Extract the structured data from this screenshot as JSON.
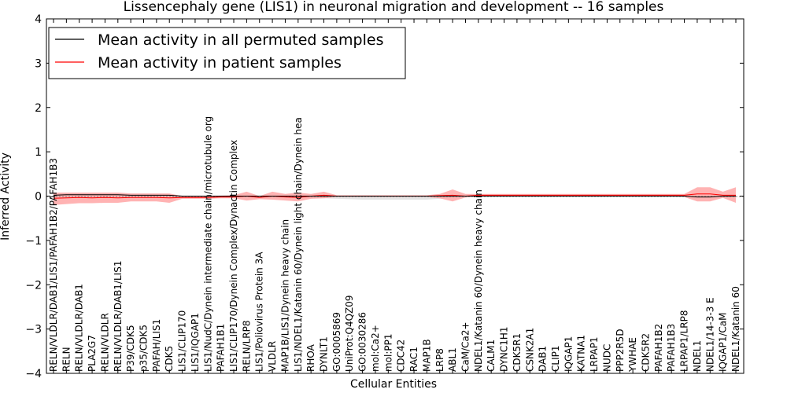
{
  "chart_data": {
    "type": "line",
    "title": "Lissencephaly gene (LIS1) in neuronal migration and development -- 16 samples",
    "xlabel": "Cellular Entities",
    "ylabel": "Inferred Activity",
    "ylim": [
      -4,
      4
    ],
    "yticks": [
      -4,
      -3,
      -2,
      -1,
      0,
      1,
      2,
      3,
      4
    ],
    "ytick_labels": [
      "−4",
      "−3",
      "−2",
      "−1",
      "0",
      "1",
      "2",
      "3",
      "4"
    ],
    "legend_position": "top-left",
    "colors": {
      "permuted_line": "#000000",
      "patient_line": "#ff0000",
      "patient_band": "#ff9999",
      "permuted_band": "#d9d9d9",
      "baseline": "#808080"
    },
    "categories": [
      "RELN/VLDLR/DAB1/LIS1/PAFAH1B2/PAFAH1B3",
      "RELN",
      "RELN/VLDLR/DAB1",
      "PLA2G7",
      "RELN/VLDLR",
      "RELN/VLDLR/DAB1/LIS1",
      "P39/CDK5",
      "p35/CDK5",
      "PAFAH/LIS1",
      "CDK5",
      "LIS1/CLIP170",
      "LIS1/IQGAP1",
      "LIS1/NudC/Dynein intermediate chain/microtubule org",
      "PAFAH1B1",
      "LIS1/CLIP170/Dynein Complex/Dynactin Complex",
      "RELN/LRP8",
      "LIS1/Poliovirus Protein 3A",
      "VLDLR",
      "MAP1B/LIS1/Dynein heavy chain",
      "LIS1/NDEL1/Katanin 60/Dynein light chain/Dynein hea",
      "RHOA",
      "DYNLT1",
      "GO:0005869",
      "UniProt:Q4QZ09",
      "GO:0030286",
      "mol:Ca2+",
      "mol:PP1",
      "CDC42",
      "RAC1",
      "MAP1B",
      "LRP8",
      "ABL1",
      "CaM/Ca2+",
      "NDEL1/Katanin 60/Dynein heavy chain",
      "CALM1",
      "DYNC1H1",
      "CDK5R1",
      "CSNK2A1",
      "DAB1",
      "CLIP1",
      "IQGAP1",
      "KATNA1",
      "LRPAP1",
      "NUDC",
      "PPP2R5D",
      "YWHAE",
      "CDK5R2",
      "PAFAH1B2",
      "PAFAH1B3",
      "LRPAP1/LRP8",
      "NDEL1",
      "NDEL1/14-3-3 E",
      "IQGAP1/CaM",
      "NDEL1/Katanin 60"
    ],
    "series": [
      {
        "name": "Mean activity in all permuted samples",
        "values": [
          0.02,
          0.03,
          0.03,
          0.03,
          0.03,
          0.03,
          0.02,
          0.02,
          0.02,
          0.02,
          0.0,
          0.0,
          0.0,
          0.0,
          0.0,
          0.0,
          0.0,
          0.0,
          0.0,
          0.0,
          0.0,
          0.0,
          0.0,
          0.0,
          0.0,
          0.0,
          0.0,
          0.0,
          0.0,
          0.0,
          0.0,
          0.0,
          0.0,
          0.0,
          0.0,
          0.0,
          0.0,
          0.0,
          0.0,
          0.0,
          0.0,
          0.0,
          0.0,
          0.0,
          0.0,
          0.0,
          0.0,
          0.0,
          0.0,
          0.0,
          -0.02,
          -0.02,
          0.0,
          0.0
        ]
      },
      {
        "name": "Mean activity in patient samples",
        "values": [
          -0.05,
          -0.04,
          -0.03,
          -0.04,
          -0.03,
          -0.04,
          -0.03,
          -0.03,
          -0.03,
          -0.04,
          -0.03,
          -0.03,
          -0.03,
          -0.02,
          -0.02,
          0.0,
          -0.03,
          0.0,
          -0.02,
          -0.03,
          0.0,
          0.02,
          0.0,
          0.0,
          0.0,
          0.0,
          0.0,
          0.0,
          0.0,
          0.0,
          0.01,
          0.02,
          0.0,
          0.02,
          0.02,
          0.02,
          0.02,
          0.02,
          0.02,
          0.02,
          0.02,
          0.02,
          0.02,
          0.02,
          0.02,
          0.02,
          0.02,
          0.02,
          0.02,
          0.02,
          0.05,
          0.05,
          0.02,
          0.02
        ]
      }
    ],
    "patient_band": {
      "upper": [
        0.08,
        0.08,
        0.08,
        0.08,
        0.08,
        0.08,
        0.06,
        0.06,
        0.06,
        0.06,
        0.0,
        0.0,
        0.0,
        0.01,
        0.02,
        0.1,
        0.0,
        0.1,
        0.05,
        0.08,
        0.05,
        0.1,
        0.02,
        0.02,
        0.02,
        0.02,
        0.02,
        0.02,
        0.02,
        0.02,
        0.05,
        0.15,
        0.05,
        0.05,
        0.05,
        0.05,
        0.05,
        0.05,
        0.05,
        0.05,
        0.05,
        0.05,
        0.05,
        0.05,
        0.05,
        0.05,
        0.05,
        0.05,
        0.05,
        0.05,
        0.2,
        0.2,
        0.1,
        0.2
      ],
      "lower": [
        -0.2,
        -0.18,
        -0.16,
        -0.16,
        -0.15,
        -0.15,
        -0.12,
        -0.12,
        -0.12,
        -0.15,
        -0.06,
        -0.06,
        -0.06,
        -0.05,
        -0.05,
        -0.1,
        -0.07,
        -0.08,
        -0.1,
        -0.12,
        -0.06,
        -0.05,
        -0.02,
        -0.02,
        -0.02,
        -0.02,
        -0.02,
        -0.02,
        -0.02,
        -0.02,
        -0.05,
        -0.12,
        -0.03,
        -0.01,
        -0.01,
        -0.01,
        -0.01,
        -0.01,
        -0.01,
        -0.01,
        -0.01,
        -0.01,
        -0.01,
        -0.01,
        -0.01,
        -0.01,
        -0.01,
        -0.01,
        -0.01,
        -0.02,
        -0.12,
        -0.12,
        -0.04,
        -0.15
      ]
    },
    "permuted_band": {
      "upper": [
        0.05,
        0.06,
        0.06,
        0.06,
        0.06,
        0.06,
        0.04,
        0.04,
        0.04,
        0.04,
        0.01,
        0.01,
        0.01,
        0.01,
        0.01,
        0.01,
        0.01,
        0.01,
        0.01,
        0.01,
        0.01,
        0.01,
        0.01,
        0.01,
        0.01,
        0.01,
        0.01,
        0.01,
        0.01,
        0.01,
        0.01,
        0.01,
        0.01,
        0.01,
        0.01,
        0.01,
        0.01,
        0.01,
        0.01,
        0.01,
        0.01,
        0.01,
        0.01,
        0.01,
        0.01,
        0.01,
        0.01,
        0.01,
        0.01,
        0.01,
        0.01,
        0.01,
        0.01,
        0.01
      ],
      "lower": [
        -0.02,
        -0.01,
        -0.01,
        -0.01,
        -0.01,
        -0.01,
        -0.01,
        -0.01,
        -0.01,
        -0.01,
        -0.01,
        -0.01,
        -0.01,
        -0.01,
        -0.01,
        -0.02,
        -0.02,
        -0.02,
        -0.02,
        -0.03,
        -0.04,
        -0.05,
        -0.06,
        -0.07,
        -0.08,
        -0.08,
        -0.08,
        -0.08,
        -0.08,
        -0.08,
        -0.06,
        -0.04,
        -0.02,
        -0.01,
        -0.01,
        -0.01,
        -0.01,
        -0.01,
        -0.01,
        -0.01,
        -0.01,
        -0.01,
        -0.01,
        -0.01,
        -0.01,
        -0.01,
        -0.01,
        -0.01,
        -0.01,
        -0.01,
        -0.05,
        -0.05,
        -0.02,
        -0.02
      ]
    }
  }
}
